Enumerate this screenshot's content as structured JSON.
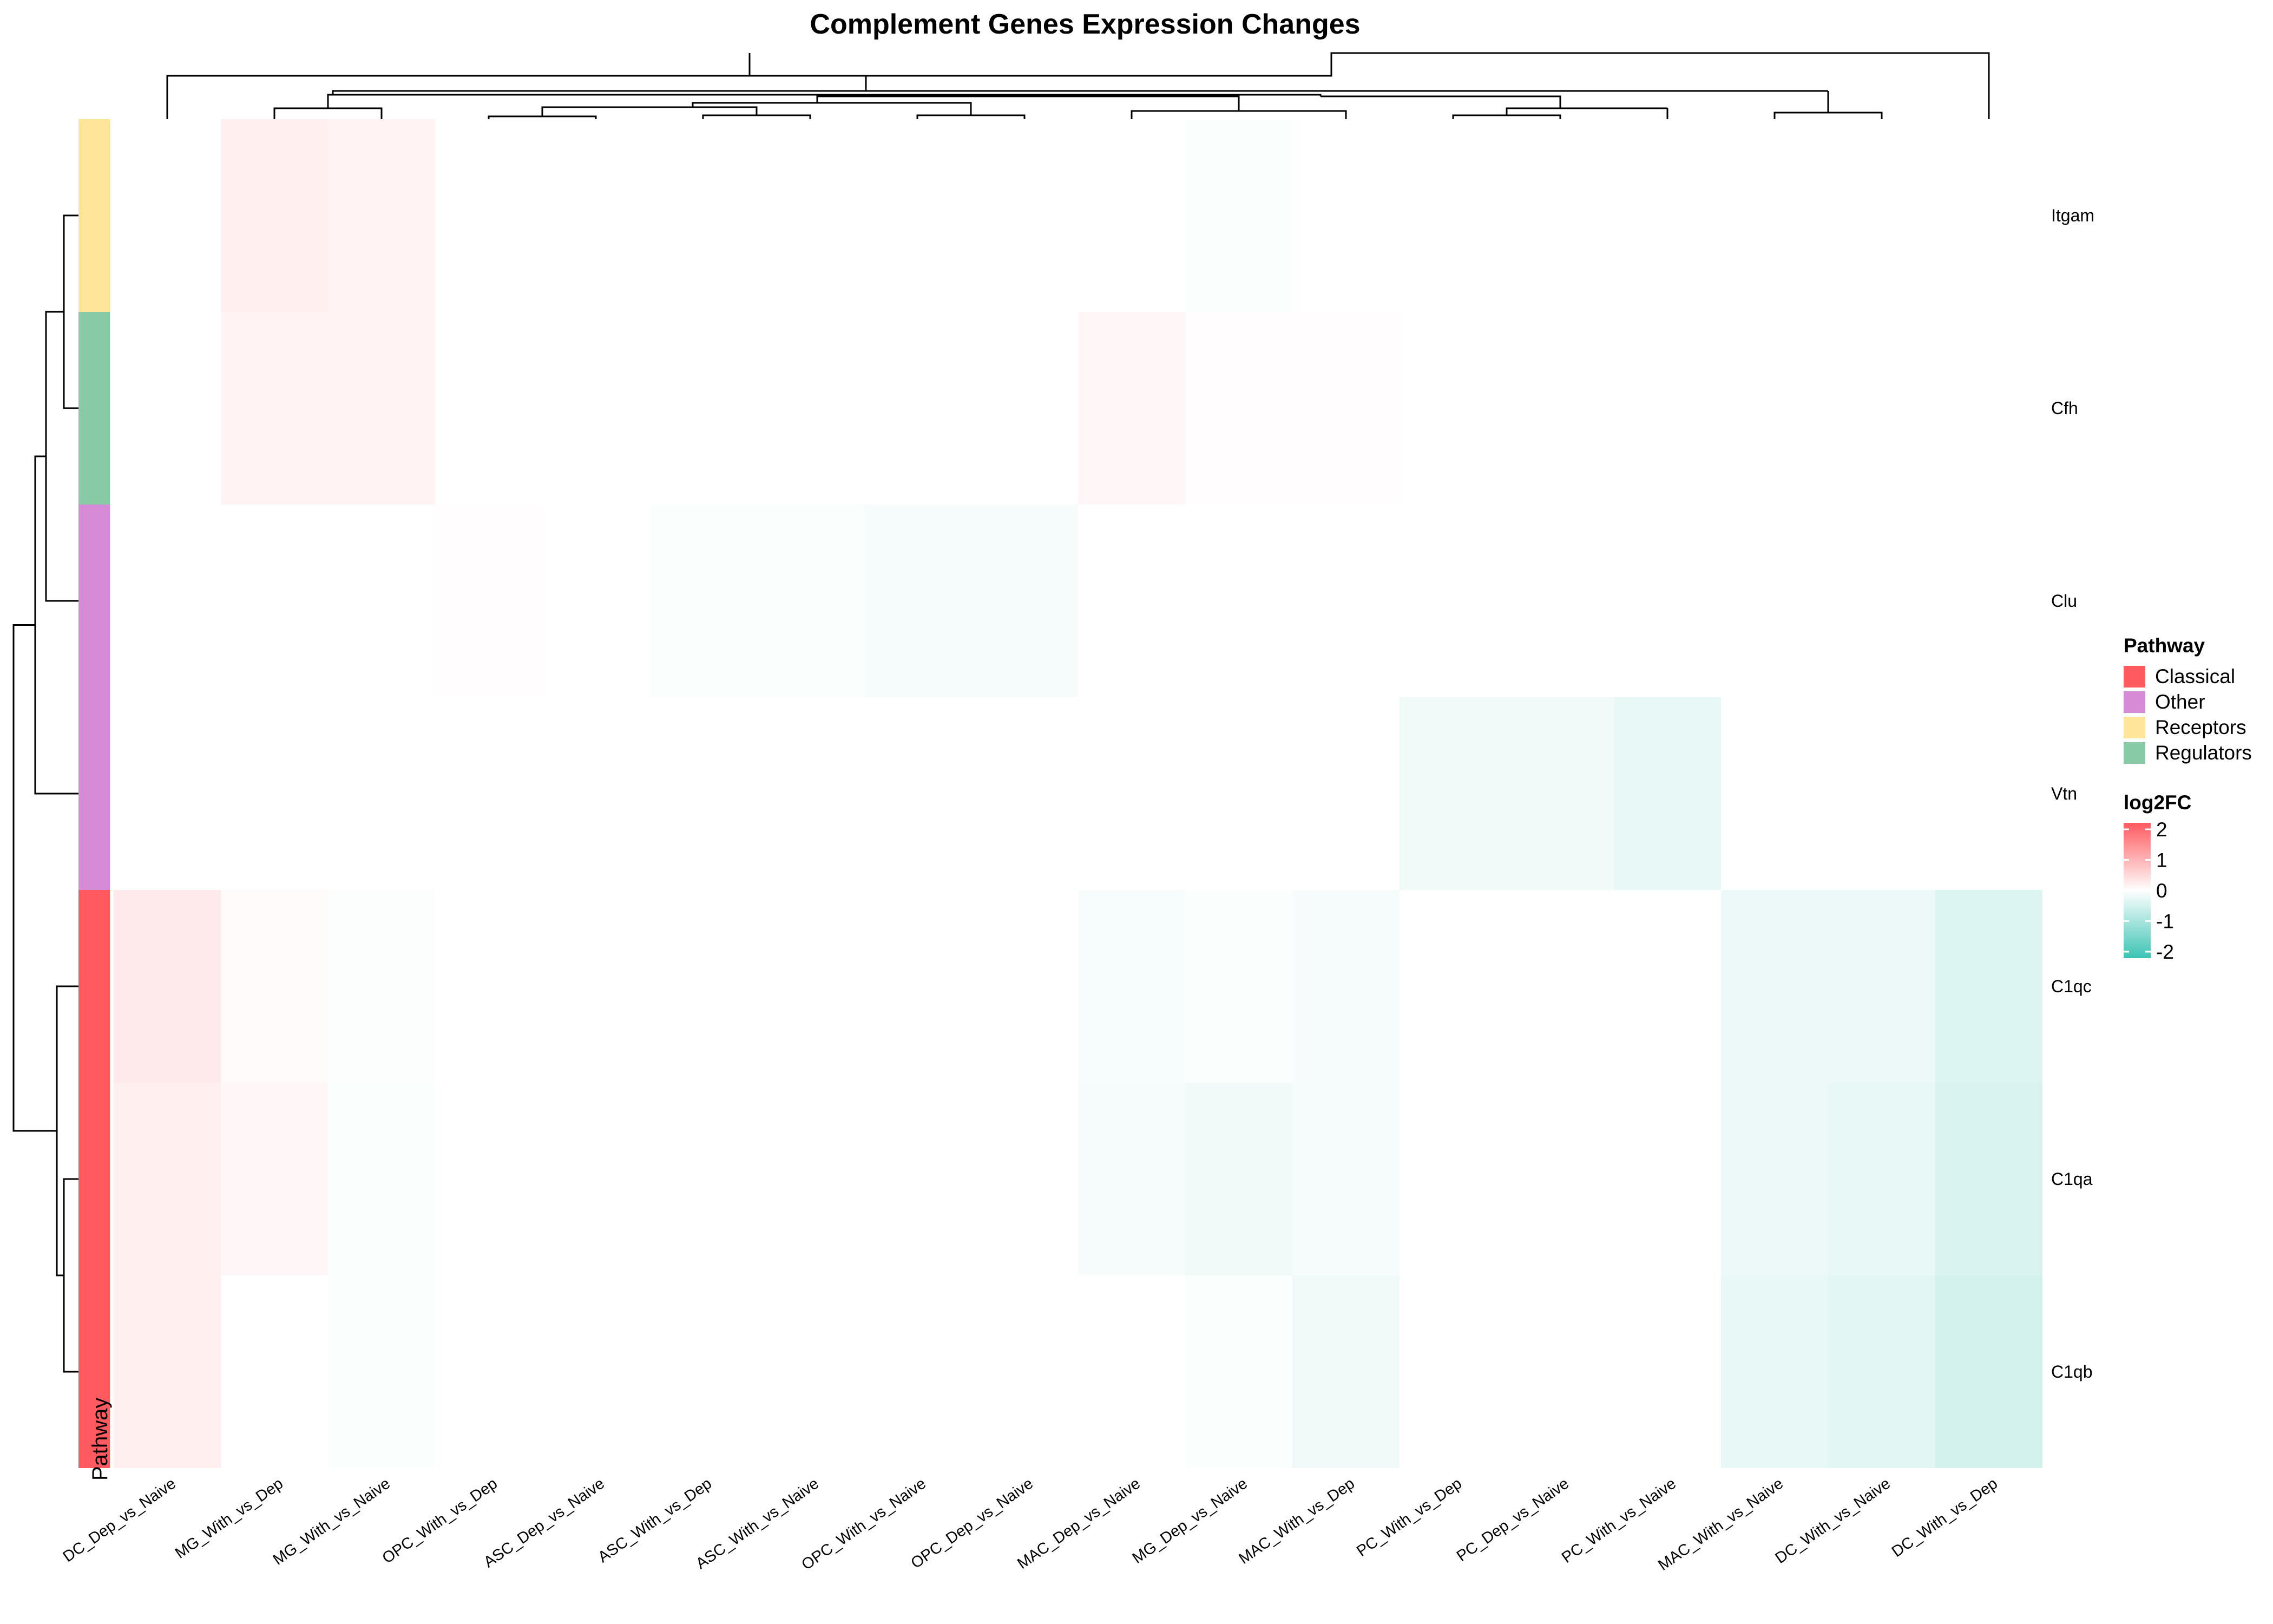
{
  "chart_data": {
    "type": "heatmap",
    "title": "Complement Genes Expression Changes",
    "rows": [
      "Itgam",
      "Cfh",
      "Clu",
      "Vtn",
      "C1qc",
      "C1qa",
      "C1qb"
    ],
    "columns": [
      "DC_Dep_vs_Naive",
      "MG_With_vs_Dep",
      "MG_With_vs_Naive",
      "OPC_With_vs_Dep",
      "ASC_Dep_vs_Naive",
      "ASC_With_vs_Dep",
      "ASC_With_vs_Naive",
      "OPC_With_vs_Naive",
      "OPC_Dep_vs_Naive",
      "MAC_Dep_vs_Naive",
      "MG_Dep_vs_Naive",
      "MAC_With_vs_Dep",
      "PC_With_vs_Dep",
      "PC_Dep_vs_Naive",
      "PC_With_vs_Naive",
      "MAC_With_vs_Naive",
      "DC_With_vs_Naive",
      "DC_With_vs_Dep"
    ],
    "values": [
      [
        0,
        0.2,
        0.15,
        0,
        0,
        0,
        0,
        0,
        0,
        0,
        -0.05,
        0,
        0,
        0,
        0,
        0,
        0,
        0
      ],
      [
        0,
        0.15,
        0.15,
        0,
        0,
        0,
        0,
        0,
        0,
        0.1,
        0.02,
        0.02,
        0,
        0,
        0,
        0,
        0,
        0
      ],
      [
        0,
        0,
        0,
        0.03,
        0,
        -0.05,
        -0.05,
        -0.1,
        -0.1,
        0,
        0,
        0,
        0,
        0,
        0,
        0,
        0,
        0
      ],
      [
        0,
        0,
        0,
        0,
        0,
        0,
        0,
        0,
        0,
        0,
        0,
        0,
        -0.15,
        -0.15,
        -0.25,
        0,
        0,
        0
      ],
      [
        0.25,
        0.05,
        -0.03,
        0,
        0,
        0,
        0,
        0,
        0,
        -0.08,
        -0.05,
        -0.1,
        0,
        0,
        0,
        -0.2,
        -0.2,
        -0.35
      ],
      [
        0.2,
        0.1,
        -0.05,
        0,
        0,
        0,
        0,
        0,
        0,
        -0.1,
        -0.15,
        -0.1,
        0,
        0,
        0,
        -0.2,
        -0.25,
        -0.4
      ],
      [
        0.2,
        0,
        -0.05,
        0,
        0,
        0,
        0,
        0,
        0,
        0,
        -0.05,
        -0.15,
        0,
        0,
        0,
        -0.25,
        -0.3,
        -0.45
      ]
    ],
    "row_annotation": {
      "name": "Pathway",
      "values": [
        "Receptors",
        "Regulators",
        "Other",
        "Other",
        "Classical",
        "Classical",
        "Classical"
      ]
    },
    "legend": {
      "pathway_title": "Pathway",
      "pathway_items": [
        {
          "label": "Classical",
          "color": "#FF5A5F"
        },
        {
          "label": "Other",
          "color": "#D68BD6"
        },
        {
          "label": "Receptors",
          "color": "#FFE59A"
        },
        {
          "label": "Regulators",
          "color": "#88C9A6"
        }
      ],
      "scale_title": "log2FC",
      "scale_ticks": [
        "2",
        "1",
        "0",
        "-1",
        "-2"
      ],
      "scale_min": -2,
      "scale_max": 2,
      "color_high": "#FF5A5F",
      "color_mid": "#FFFFFF",
      "color_low": "#3CC4B4"
    },
    "annotation_axis_label": "Pathway"
  }
}
